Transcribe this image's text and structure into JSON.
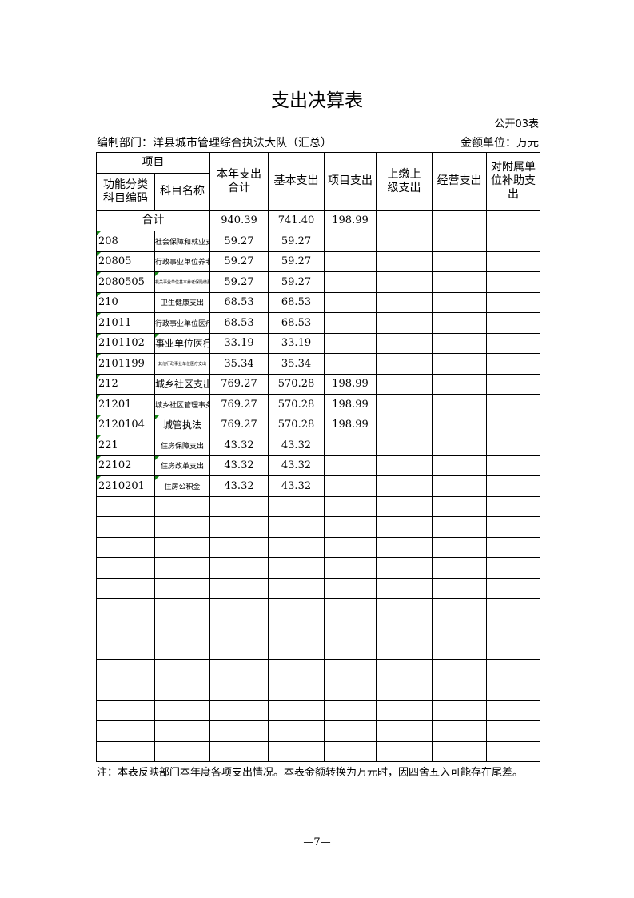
{
  "title": "支出决算表",
  "table_code": "公开03表",
  "dept": "编制部门：洋县城市管理综合执法大队（汇总）",
  "unit": "金额单位：万元",
  "headers": {
    "item": "项目",
    "code": "功能分类科目编码",
    "name": "科目名称",
    "total": "本年支出合计",
    "basic": "基本支出",
    "project": "项目支出",
    "upper": "上缴上级支出",
    "business": "经营支出",
    "subsidy": "对附属单位补助支出"
  },
  "sum": {
    "label": "合计",
    "total": "940.39",
    "basic": "741.40",
    "project": "198.99"
  },
  "rows": [
    {
      "code": "208",
      "name": "社会保障和就业支出",
      "total": "59.27",
      "basic": "59.27",
      "project": "",
      "sz": "",
      "tri": false
    },
    {
      "code": "20805",
      "name": "行政事业单位养老支出",
      "total": "59.27",
      "basic": "59.27",
      "project": "",
      "sz": "",
      "tri": false
    },
    {
      "code": "2080505",
      "name": "机关事业单位基本养老保险缴费支出",
      "total": "59.27",
      "basic": "59.27",
      "project": "",
      "sz": "s",
      "tri": true
    },
    {
      "code": "210",
      "name": "卫生健康支出",
      "total": "68.53",
      "basic": "68.53",
      "project": "",
      "sz": "",
      "tri": false
    },
    {
      "code": "21011",
      "name": "行政事业单位医疗",
      "total": "68.53",
      "basic": "68.53",
      "project": "",
      "sz": "",
      "tri": false
    },
    {
      "code": "2101102",
      "name": "事业单位医疗",
      "total": "33.19",
      "basic": "33.19",
      "project": "",
      "sz": "big",
      "tri": true
    },
    {
      "code": "2101199",
      "name": "其他行政事业单位医疗支出",
      "total": "35.34",
      "basic": "35.34",
      "project": "",
      "sz": "s",
      "tri": false
    },
    {
      "code": "212",
      "name": "城乡社区支出",
      "total": "769.27",
      "basic": "570.28",
      "project": "198.99",
      "sz": "big",
      "tri": false
    },
    {
      "code": "21201",
      "name": "城乡社区管理事务",
      "total": "769.27",
      "basic": "570.28",
      "project": "198.99",
      "sz": "",
      "tri": false
    },
    {
      "code": "2120104",
      "name": "城管执法",
      "total": "769.27",
      "basic": "570.28",
      "project": "198.99",
      "sz": "big",
      "tri": true
    },
    {
      "code": "221",
      "name": "住房保障支出",
      "total": "43.32",
      "basic": "43.32",
      "project": "",
      "sz": "",
      "tri": false
    },
    {
      "code": "22102",
      "name": "住房改革支出",
      "total": "43.32",
      "basic": "43.32",
      "project": "",
      "sz": "",
      "tri": true
    },
    {
      "code": "2210201",
      "name": "住房公积金",
      "total": "43.32",
      "basic": "43.32",
      "project": "",
      "sz": "",
      "tri": true
    }
  ],
  "note": "注：本表反映部门本年度各项支出情况。本表金额转换为万元时，因四舍五入可能存在尾差。",
  "page": "—7—"
}
